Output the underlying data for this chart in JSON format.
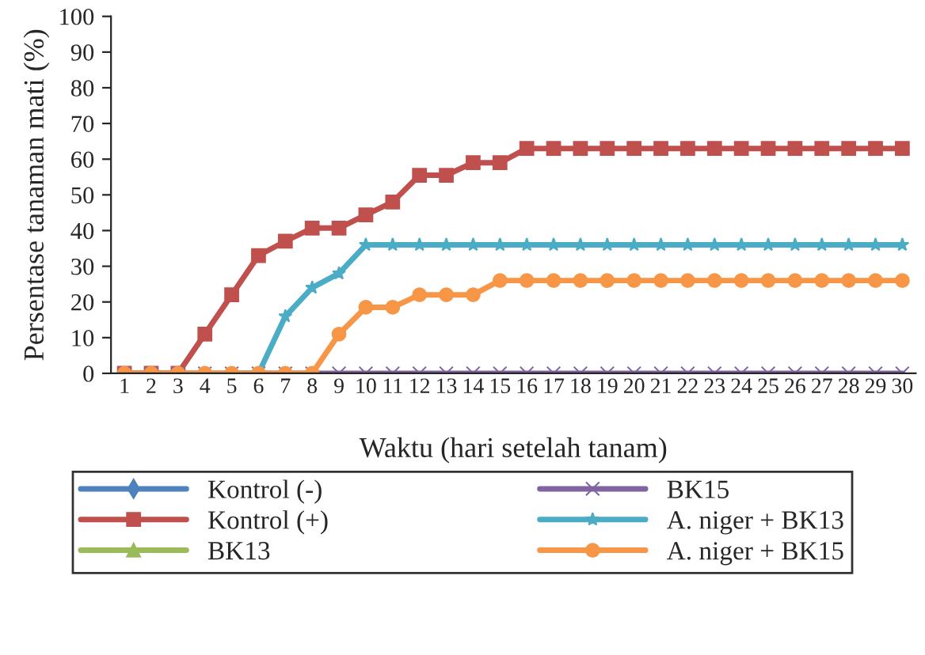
{
  "chart_data": {
    "type": "line",
    "xlabel": "Waktu (hari setelah tanam)",
    "ylabel": "Persentase tanaman mati (%)",
    "categories": [
      "1",
      "2",
      "3",
      "4",
      "5",
      "6",
      "7",
      "8",
      "9",
      "10",
      "11",
      "12",
      "13",
      "14",
      "15",
      "16",
      "17",
      "18",
      "19",
      "20",
      "21",
      "22",
      "23",
      "24",
      "25",
      "26",
      "27",
      "28",
      "29",
      "30"
    ],
    "ylim": [
      0,
      100
    ],
    "yticks": [
      0,
      10,
      20,
      30,
      40,
      50,
      60,
      70,
      80,
      90,
      100
    ],
    "grid": false,
    "legend": "bottom",
    "line_style": "solid",
    "series": [
      {
        "name": "Kontrol (-)",
        "color": "#4f81bd",
        "marker": "diamond",
        "values": [
          null,
          null,
          null,
          null,
          null,
          null,
          null,
          null,
          null,
          null,
          null,
          null,
          null,
          null,
          null,
          null,
          null,
          null,
          null,
          null,
          null,
          null,
          null,
          null,
          null,
          null,
          null,
          null,
          null,
          null
        ]
      },
      {
        "name": "Kontrol (+)",
        "color": "#c0504d",
        "marker": "square",
        "values": [
          0,
          0,
          0,
          11,
          22,
          33,
          37,
          40.7,
          40.7,
          44.4,
          48,
          55.5,
          55.5,
          59,
          59,
          63,
          63,
          63,
          63,
          63,
          63,
          63,
          63,
          63,
          63,
          63,
          63,
          63,
          63,
          63
        ]
      },
      {
        "name": "BK13",
        "color": "#9bbb59",
        "marker": "triangle",
        "values": [
          null,
          null,
          null,
          null,
          null,
          null,
          null,
          null,
          null,
          null,
          null,
          null,
          null,
          null,
          null,
          null,
          null,
          null,
          null,
          null,
          null,
          null,
          null,
          null,
          null,
          null,
          null,
          null,
          null,
          null
        ]
      },
      {
        "name": "BK15",
        "color": "#8064a2",
        "marker": "cross",
        "values": [
          0,
          0,
          0,
          0,
          0,
          0,
          0,
          0,
          0,
          0,
          0,
          0,
          0,
          0,
          0,
          0,
          0,
          0,
          0,
          0,
          0,
          0,
          0,
          0,
          0,
          0,
          0,
          0,
          0,
          0
        ]
      },
      {
        "name": "A. niger + BK13",
        "color": "#4bacc6",
        "marker": "star",
        "values": [
          null,
          null,
          null,
          null,
          0,
          0,
          16,
          24,
          28,
          36,
          36,
          36,
          36,
          36,
          36,
          36,
          36,
          36,
          36,
          36,
          36,
          36,
          36,
          36,
          36,
          36,
          36,
          36,
          36,
          36
        ]
      },
      {
        "name": "A. niger + BK15",
        "color": "#f79646",
        "marker": "circle",
        "values": [
          0,
          0,
          0,
          0,
          0,
          0,
          0,
          0,
          11,
          18.5,
          18.5,
          22,
          22,
          22,
          26,
          26,
          26,
          26,
          26,
          26,
          26,
          26,
          26,
          26,
          26,
          26,
          26,
          26,
          26,
          26
        ]
      }
    ]
  }
}
